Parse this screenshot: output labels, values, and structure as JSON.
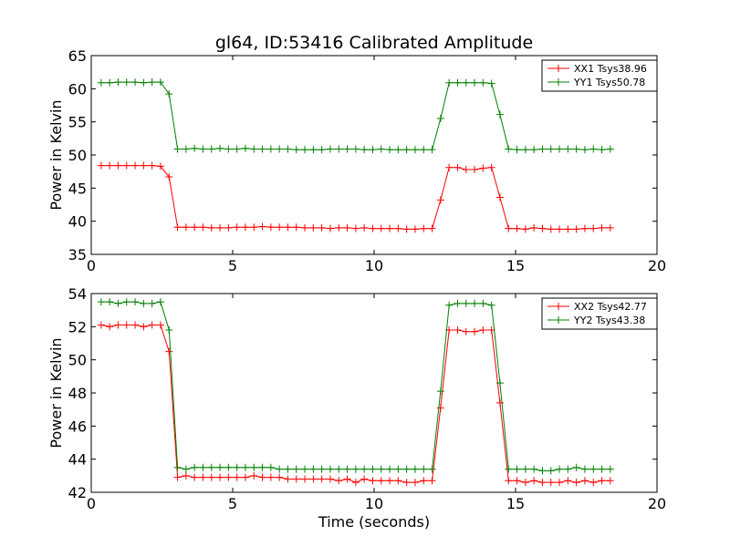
{
  "figure": {
    "title": "gl64, ID:53416 Calibrated Amplitude"
  },
  "chart_data": [
    {
      "type": "line",
      "title": "gl64, ID:53416 Calibrated Amplitude",
      "xlabel": "",
      "ylabel": "Power in Kelvin",
      "xlim": [
        0,
        20
      ],
      "ylim": [
        35,
        65
      ],
      "xticks": [
        "0",
        "5",
        "10",
        "15",
        "20"
      ],
      "yticks": [
        "35",
        "40",
        "45",
        "50",
        "55",
        "60",
        "65"
      ],
      "grid": false,
      "legend_position": "top-right",
      "x": [
        0.35,
        0.65,
        0.95,
        1.25,
        1.55,
        1.85,
        2.15,
        2.45,
        2.75,
        3.05,
        3.35,
        3.65,
        3.95,
        4.25,
        4.55,
        4.85,
        5.15,
        5.45,
        5.75,
        6.05,
        6.35,
        6.65,
        6.95,
        7.25,
        7.55,
        7.85,
        8.15,
        8.45,
        8.75,
        9.05,
        9.35,
        9.65,
        9.95,
        10.25,
        10.55,
        10.85,
        11.15,
        11.45,
        11.75,
        12.05,
        12.35,
        12.65,
        12.95,
        13.25,
        13.55,
        13.85,
        14.15,
        14.45,
        14.75,
        15.05,
        15.35,
        15.65,
        15.95,
        16.25,
        16.55,
        16.85,
        17.15,
        17.45,
        17.75,
        18.05,
        18.35
      ],
      "series": [
        {
          "name": "XX1 Tsys38.96",
          "color": "#ff0000",
          "values": [
            48.4,
            48.4,
            48.4,
            48.4,
            48.4,
            48.4,
            48.4,
            48.3,
            46.7,
            39.1,
            39.1,
            39.1,
            39.1,
            39.0,
            39.0,
            39.0,
            39.1,
            39.1,
            39.1,
            39.2,
            39.1,
            39.1,
            39.1,
            39.1,
            39.0,
            39.0,
            39.0,
            38.9,
            39.0,
            39.0,
            38.9,
            39.0,
            38.9,
            38.9,
            38.9,
            38.9,
            38.8,
            38.8,
            38.9,
            38.9,
            43.2,
            48.1,
            48.1,
            47.8,
            47.8,
            48.0,
            48.1,
            43.6,
            38.9,
            38.9,
            38.8,
            39.0,
            38.9,
            38.8,
            38.8,
            38.8,
            38.8,
            38.9,
            38.9,
            39.0,
            39.0
          ]
        },
        {
          "name": "YY1 Tsys50.78",
          "color": "#008000",
          "values": [
            60.9,
            60.9,
            61.0,
            61.0,
            61.0,
            60.9,
            61.0,
            61.0,
            59.2,
            50.9,
            50.9,
            51.0,
            50.9,
            50.9,
            51.0,
            50.9,
            50.9,
            51.0,
            50.9,
            50.9,
            50.9,
            50.9,
            50.9,
            50.8,
            50.8,
            50.8,
            50.8,
            50.9,
            50.9,
            50.9,
            50.9,
            50.8,
            50.8,
            50.9,
            50.8,
            50.8,
            50.8,
            50.8,
            50.8,
            50.8,
            55.5,
            60.9,
            60.9,
            60.9,
            60.9,
            60.9,
            60.8,
            56.1,
            50.9,
            50.8,
            50.8,
            50.8,
            50.9,
            50.9,
            50.9,
            50.9,
            50.9,
            50.8,
            50.9,
            50.8,
            50.9
          ]
        }
      ]
    },
    {
      "type": "line",
      "title": "",
      "xlabel": "Time (seconds)",
      "ylabel": "Power in Kelvin",
      "xlim": [
        0,
        20
      ],
      "ylim": [
        42,
        54
      ],
      "xticks": [
        "0",
        "5",
        "10",
        "15",
        "20"
      ],
      "yticks": [
        "42",
        "44",
        "46",
        "48",
        "50",
        "52",
        "54"
      ],
      "grid": false,
      "legend_position": "top-right",
      "x": [
        0.35,
        0.65,
        0.95,
        1.25,
        1.55,
        1.85,
        2.15,
        2.45,
        2.75,
        3.05,
        3.35,
        3.65,
        3.95,
        4.25,
        4.55,
        4.85,
        5.15,
        5.45,
        5.75,
        6.05,
        6.35,
        6.65,
        6.95,
        7.25,
        7.55,
        7.85,
        8.15,
        8.45,
        8.75,
        9.05,
        9.35,
        9.65,
        9.95,
        10.25,
        10.55,
        10.85,
        11.15,
        11.45,
        11.75,
        12.05,
        12.35,
        12.65,
        12.95,
        13.25,
        13.55,
        13.85,
        14.15,
        14.45,
        14.75,
        15.05,
        15.35,
        15.65,
        15.95,
        16.25,
        16.55,
        16.85,
        17.15,
        17.45,
        17.75,
        18.05,
        18.35
      ],
      "series": [
        {
          "name": "XX2 Tsys42.77",
          "color": "#ff0000",
          "values": [
            52.1,
            52.0,
            52.1,
            52.1,
            52.1,
            52.0,
            52.1,
            52.1,
            50.5,
            42.9,
            43.0,
            42.9,
            42.9,
            42.9,
            42.9,
            42.9,
            42.9,
            42.9,
            43.0,
            42.9,
            42.9,
            42.9,
            42.8,
            42.8,
            42.8,
            42.8,
            42.8,
            42.8,
            42.7,
            42.8,
            42.6,
            42.8,
            42.7,
            42.7,
            42.7,
            42.7,
            42.6,
            42.6,
            42.7,
            42.7,
            47.1,
            51.8,
            51.8,
            51.7,
            51.7,
            51.8,
            51.8,
            47.4,
            42.7,
            42.7,
            42.6,
            42.7,
            42.6,
            42.6,
            42.6,
            42.7,
            42.6,
            42.7,
            42.6,
            42.7,
            42.7
          ]
        },
        {
          "name": "YY2 Tsys43.38",
          "color": "#008000",
          "values": [
            53.5,
            53.5,
            53.4,
            53.5,
            53.5,
            53.4,
            53.4,
            53.5,
            51.8,
            43.5,
            43.4,
            43.5,
            43.5,
            43.5,
            43.5,
            43.5,
            43.5,
            43.5,
            43.5,
            43.5,
            43.5,
            43.4,
            43.4,
            43.4,
            43.4,
            43.4,
            43.4,
            43.4,
            43.4,
            43.4,
            43.4,
            43.4,
            43.4,
            43.4,
            43.4,
            43.4,
            43.4,
            43.4,
            43.4,
            43.4,
            48.1,
            53.3,
            53.4,
            53.4,
            53.4,
            53.4,
            53.3,
            48.6,
            43.4,
            43.4,
            43.4,
            43.4,
            43.3,
            43.3,
            43.4,
            43.4,
            43.5,
            43.4,
            43.4,
            43.4,
            43.4
          ]
        }
      ]
    }
  ]
}
